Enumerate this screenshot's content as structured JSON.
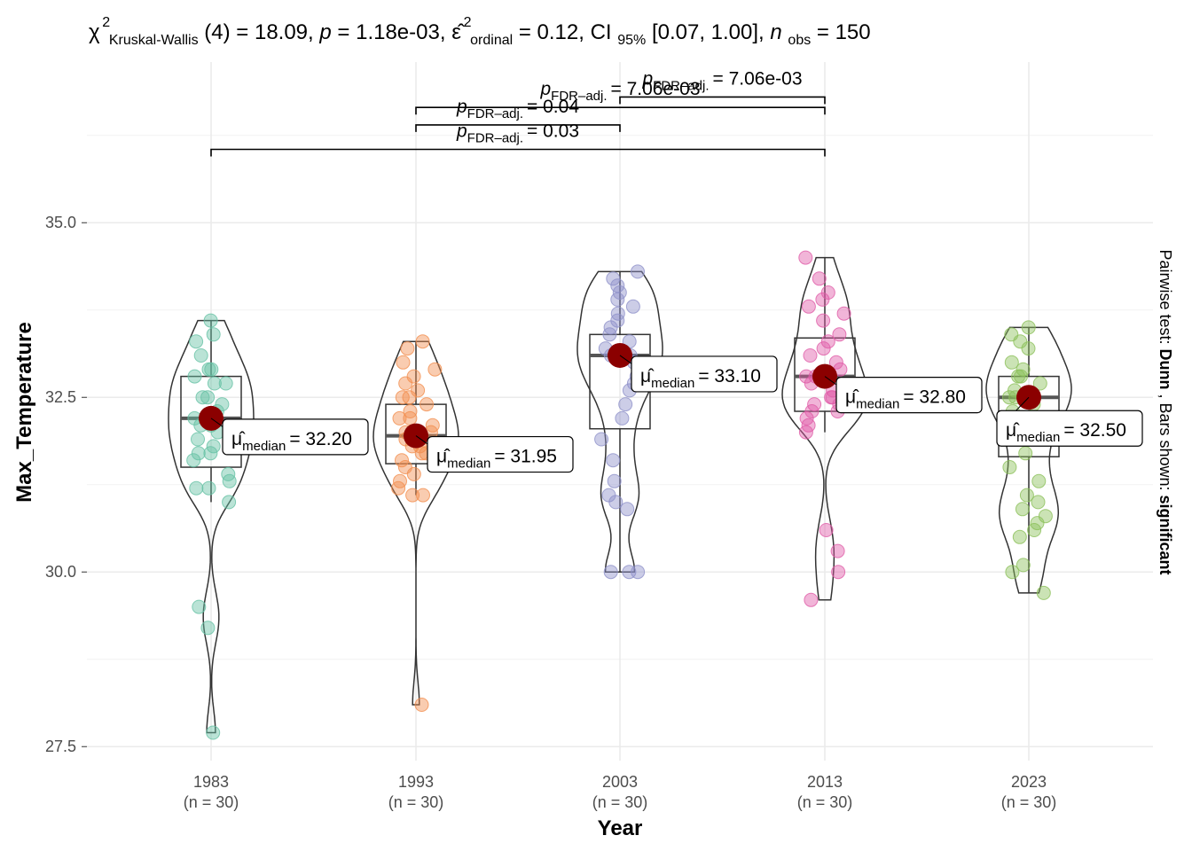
{
  "header": {
    "chi": "χ",
    "chi_sup": "2",
    "chi_sub": "Kruskal-Wallis",
    "stat_text": "(4) = 18.09,",
    "p_sym": "p",
    "p_text": "= 1.18e-03,",
    "eps_sym": "ε̂",
    "eps_sup": "2",
    "eps_sub": "ordinal",
    "eps_text": "= 0.12, CI",
    "ci_sub": "95%",
    "ci_text": "[0.07, 1.00],",
    "n_sym": "n",
    "n_sub": "obs",
    "n_text": "= 150"
  },
  "caption": {
    "prefix": "Pairwise test: ",
    "test": "Dunn",
    "middle": ", Bars shown: ",
    "shown": "significant"
  },
  "colors": {
    "1983": "#66C2A5",
    "1993": "#F28E4F",
    "2003": "#8F91C9",
    "2013": "#E05CA8",
    "2023": "#8CC05A",
    "median_point": "#8B0000",
    "grid": "#EBEBEB"
  },
  "chart_data": {
    "type": "violin-box-scatter",
    "title": "",
    "xlabel": "Year",
    "ylabel": "Max_Temperature",
    "ylim": [
      27.3,
      37.3
    ],
    "y_ticks": [
      "27.5",
      "30.0",
      "32.5",
      "35.0"
    ],
    "grid": true,
    "categories": [
      "1983",
      "1993",
      "2003",
      "2013",
      "2023"
    ],
    "category_counts": [
      "(n = 30)",
      "(n = 30)",
      "(n = 30)",
      "(n = 30)",
      "(n = 30)"
    ],
    "groups": [
      {
        "name": "1983",
        "median": 32.2,
        "q1": 31.5,
        "q3": 32.8,
        "whisker_low": 31.0,
        "whisker_high": 33.6,
        "min": 27.7,
        "max": 33.6,
        "median_label": "32.20",
        "points": [
          33.6,
          33.4,
          33.3,
          33.1,
          32.9,
          32.9,
          32.8,
          32.7,
          32.7,
          32.5,
          32.5,
          32.4,
          32.3,
          32.2,
          32.1,
          32.1,
          32.0,
          31.9,
          31.8,
          31.7,
          31.7,
          31.6,
          31.4,
          31.3,
          31.2,
          31.2,
          31.0,
          29.5,
          29.2,
          27.7
        ]
      },
      {
        "name": "1993",
        "median": 31.95,
        "q1": 31.55,
        "q3": 32.4,
        "whisker_low": 31.1,
        "whisker_high": 33.3,
        "min": 28.1,
        "max": 33.3,
        "median_label": "31.95",
        "points": [
          33.3,
          33.2,
          33.0,
          32.9,
          32.8,
          32.7,
          32.6,
          32.5,
          32.5,
          32.4,
          32.3,
          32.2,
          32.2,
          32.1,
          32.0,
          32.0,
          31.9,
          31.9,
          31.8,
          31.8,
          31.7,
          31.7,
          31.6,
          31.5,
          31.4,
          31.3,
          31.2,
          31.1,
          31.1,
          28.1
        ]
      },
      {
        "name": "2003",
        "median": 33.1,
        "q1": 32.05,
        "q3": 33.4,
        "whisker_low": 30.0,
        "whisker_high": 34.3,
        "min": 30.0,
        "max": 34.3,
        "median_label": "33.10",
        "points": [
          34.3,
          34.2,
          34.1,
          34.0,
          33.9,
          33.8,
          33.7,
          33.6,
          33.5,
          33.4,
          33.3,
          33.2,
          33.1,
          33.1,
          33.0,
          32.9,
          32.8,
          32.7,
          32.6,
          32.4,
          32.2,
          31.9,
          31.6,
          31.3,
          31.1,
          31.0,
          30.9,
          30.0,
          30.0,
          30.0
        ]
      },
      {
        "name": "2013",
        "median": 32.8,
        "q1": 32.3,
        "q3": 33.35,
        "whisker_low": 32.0,
        "whisker_high": 34.5,
        "min": 29.6,
        "max": 34.5,
        "median_label": "32.80",
        "points": [
          34.5,
          34.2,
          34.0,
          33.9,
          33.8,
          33.7,
          33.6,
          33.4,
          33.3,
          33.2,
          33.1,
          33.0,
          32.9,
          32.8,
          32.8,
          32.7,
          32.6,
          32.5,
          32.5,
          32.4,
          32.4,
          32.3,
          32.3,
          32.2,
          32.1,
          32.0,
          30.6,
          30.3,
          30.0,
          29.6
        ]
      },
      {
        "name": "2023",
        "median": 32.5,
        "q1": 31.65,
        "q3": 32.8,
        "whisker_low": 29.7,
        "whisker_high": 33.5,
        "min": 29.7,
        "max": 33.5,
        "median_label": "32.50",
        "points": [
          33.5,
          33.4,
          33.3,
          33.2,
          33.0,
          32.9,
          32.8,
          32.8,
          32.7,
          32.6,
          32.5,
          32.5,
          32.4,
          32.3,
          32.2,
          32.1,
          31.9,
          31.7,
          31.5,
          31.3,
          31.1,
          31.0,
          30.9,
          30.8,
          30.7,
          30.6,
          30.5,
          30.1,
          30.0,
          29.7
        ]
      }
    ],
    "median_symbol": "μ̂",
    "median_subscript": "median",
    "comparisons": [
      {
        "from": "2003",
        "to": "2013",
        "y": 36.8,
        "p_sym": "p",
        "p_sub": "FDR–adj.",
        "p_value": "= 7.06e-03"
      },
      {
        "from": "1993",
        "to": "2013",
        "y": 36.65,
        "p_sym": "p",
        "p_sub": "FDR–adj.",
        "p_value": "= 7.06e-03"
      },
      {
        "from": "1993",
        "to": "2003",
        "y": 36.4,
        "p_sym": "p",
        "p_sub": "FDR–adj.",
        "p_value": "= 0.04"
      },
      {
        "from": "1983",
        "to": "2013",
        "y": 36.05,
        "p_sym": "p",
        "p_sub": "FDR–adj.",
        "p_value": "= 0.03"
      }
    ]
  }
}
